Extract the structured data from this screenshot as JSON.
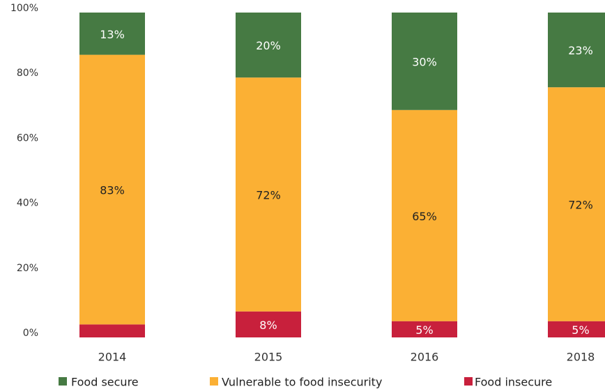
{
  "chart_data": {
    "type": "stacked_bar",
    "categories": [
      "2014",
      "2015",
      "2016",
      "2018"
    ],
    "series": [
      {
        "name": "Food insecure",
        "color": "#c8203c",
        "values": [
          4,
          8,
          5,
          5
        ],
        "value_labels": [
          null,
          "8%",
          "5%",
          "5%"
        ]
      },
      {
        "name": "Vulnerable to food insecurity",
        "color": "#fbb034",
        "values": [
          83,
          72,
          65,
          72
        ],
        "value_labels": [
          "83%",
          "72%",
          "65%",
          "72%"
        ]
      },
      {
        "name": "Food secure",
        "color": "#467a43",
        "values": [
          13,
          20,
          30,
          23
        ],
        "value_labels": [
          "13%",
          "20%",
          "30%",
          "23%"
        ]
      }
    ],
    "ylim": [
      0,
      100
    ],
    "yticks": [
      {
        "value": 0,
        "label": "0%"
      },
      {
        "value": 20,
        "label": "20%"
      },
      {
        "value": 40,
        "label": "40%"
      },
      {
        "value": 60,
        "label": "60%"
      },
      {
        "value": 80,
        "label": "80%"
      },
      {
        "value": 100,
        "label": "100%"
      }
    ],
    "legend": "bottom",
    "grid": false
  }
}
